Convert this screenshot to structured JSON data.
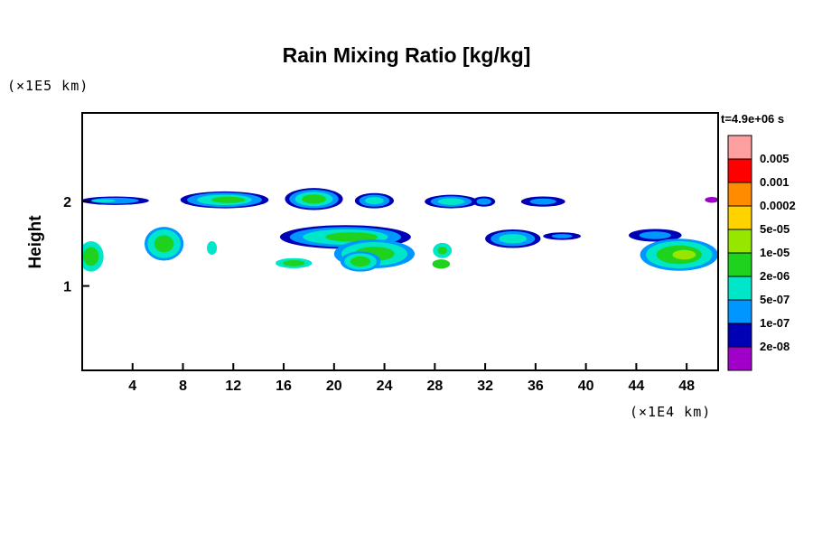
{
  "chart_data": {
    "type": "heatmap",
    "subtype": "filled-contour",
    "title": "Rain Mixing Ratio [kg/kg]",
    "ylabel": "Height",
    "y_unit_label": "(×1E5 km)",
    "x_unit_label": "(×1E4 km)",
    "time_label": "t=4.9e+06 s",
    "xlim": [
      0,
      50.5
    ],
    "ylim": [
      0,
      3.05
    ],
    "x_ticks": [
      4,
      8,
      12,
      16,
      20,
      24,
      28,
      32,
      36,
      40,
      44,
      48
    ],
    "y_ticks": [
      1,
      2
    ],
    "grid": false,
    "legend_position": "right",
    "colorbar": {
      "labels": [
        "0.005",
        "0.001",
        "0.0002",
        "5e-05",
        "1e-05",
        "2e-06",
        "5e-07",
        "1e-07",
        "2e-08"
      ],
      "colors": [
        "#ffa0a0",
        "#ff0000",
        "#ff8c00",
        "#ffd200",
        "#96e600",
        "#1ed21e",
        "#00e6c8",
        "#0096ff",
        "#0000b4",
        "#a000c8"
      ]
    },
    "blobs": [
      {
        "cx": 2.6,
        "cy": 2.01,
        "rx": 2.7,
        "ry": 0.05,
        "layers": [
          {
            "color": "#0000b4",
            "f": 1
          },
          {
            "color": "#0096ff",
            "f": 0.7
          },
          {
            "color": "#00e6c8",
            "f": 0.35,
            "dx": -0.9
          }
        ]
      },
      {
        "cx": 11.3,
        "cy": 2.02,
        "rx": 3.5,
        "ry": 0.1,
        "layers": [
          {
            "color": "#0000b4",
            "f": 1
          },
          {
            "color": "#0096ff",
            "f": 0.85
          },
          {
            "color": "#00e6c8",
            "f": 0.62
          },
          {
            "color": "#1ed21e",
            "f": 0.38,
            "dx": 0.3
          }
        ]
      },
      {
        "cx": 18.4,
        "cy": 2.03,
        "rx": 2.3,
        "ry": 0.13,
        "layers": [
          {
            "color": "#0000b4",
            "f": 1
          },
          {
            "color": "#0096ff",
            "f": 0.85
          },
          {
            "color": "#00e6c8",
            "f": 0.65
          },
          {
            "color": "#1ed21e",
            "f": 0.42
          }
        ]
      },
      {
        "cx": 23.2,
        "cy": 2.01,
        "rx": 1.55,
        "ry": 0.09,
        "layers": [
          {
            "color": "#0000b4",
            "f": 1
          },
          {
            "color": "#0096ff",
            "f": 0.78
          },
          {
            "color": "#00e6c8",
            "f": 0.48
          }
        ]
      },
      {
        "cx": 29.3,
        "cy": 2.0,
        "rx": 2.1,
        "ry": 0.08,
        "layers": [
          {
            "color": "#0000b4",
            "f": 1
          },
          {
            "color": "#0096ff",
            "f": 0.78
          },
          {
            "color": "#00e6c8",
            "f": 0.5
          }
        ]
      },
      {
        "cx": 31.9,
        "cy": 2.0,
        "rx": 0.9,
        "ry": 0.06,
        "layers": [
          {
            "color": "#0000b4",
            "f": 1
          },
          {
            "color": "#0096ff",
            "f": 0.65
          }
        ]
      },
      {
        "cx": 36.6,
        "cy": 2.0,
        "rx": 1.75,
        "ry": 0.06,
        "layers": [
          {
            "color": "#0000b4",
            "f": 1
          },
          {
            "color": "#0096ff",
            "f": 0.6
          }
        ]
      },
      {
        "cx": 50.0,
        "cy": 2.02,
        "rx": 0.55,
        "ry": 0.035,
        "layers": [
          {
            "color": "#a000c8",
            "f": 1
          }
        ]
      },
      {
        "cx": 6.5,
        "cy": 1.5,
        "rx": 1.55,
        "ry": 0.2,
        "layers": [
          {
            "color": "#0096ff",
            "f": 1
          },
          {
            "color": "#00e6c8",
            "f": 0.85
          },
          {
            "color": "#1ed21e",
            "f": 0.5
          }
        ]
      },
      {
        "cx": 10.3,
        "cy": 1.45,
        "rx": 0.4,
        "ry": 0.08,
        "layers": [
          {
            "color": "#00e6c8",
            "f": 1
          }
        ]
      },
      {
        "cx": 20.9,
        "cy": 1.58,
        "rx": 5.2,
        "ry": 0.14,
        "layers": [
          {
            "color": "#0000b4",
            "f": 1
          },
          {
            "color": "#0096ff",
            "f": 0.85
          },
          {
            "color": "#00e6c8",
            "f": 0.65
          },
          {
            "color": "#1ed21e",
            "f": 0.4,
            "dx": 0.5
          }
        ]
      },
      {
        "cx": 23.2,
        "cy": 1.38,
        "rx": 3.2,
        "ry": 0.17,
        "layers": [
          {
            "color": "#0096ff",
            "f": 1
          },
          {
            "color": "#00e6c8",
            "f": 0.82
          },
          {
            "color": "#1ed21e",
            "f": 0.5
          }
        ]
      },
      {
        "cx": 28.6,
        "cy": 1.42,
        "rx": 0.75,
        "ry": 0.09,
        "layers": [
          {
            "color": "#00e6c8",
            "f": 1
          },
          {
            "color": "#1ed21e",
            "f": 0.5
          }
        ]
      },
      {
        "cx": 34.2,
        "cy": 1.56,
        "rx": 2.2,
        "ry": 0.11,
        "layers": [
          {
            "color": "#0000b4",
            "f": 1
          },
          {
            "color": "#0096ff",
            "f": 0.8
          },
          {
            "color": "#00e6c8",
            "f": 0.5
          }
        ]
      },
      {
        "cx": 38.1,
        "cy": 1.59,
        "rx": 1.5,
        "ry": 0.045,
        "layers": [
          {
            "color": "#0000b4",
            "f": 1
          },
          {
            "color": "#0096ff",
            "f": 0.55
          }
        ]
      },
      {
        "cx": 45.5,
        "cy": 1.6,
        "rx": 2.1,
        "ry": 0.075,
        "layers": [
          {
            "color": "#0000b4",
            "f": 1
          },
          {
            "color": "#0096ff",
            "f": 0.6
          }
        ]
      },
      {
        "cx": 47.4,
        "cy": 1.37,
        "rx": 3.1,
        "ry": 0.19,
        "layers": [
          {
            "color": "#0096ff",
            "f": 1
          },
          {
            "color": "#00e6c8",
            "f": 0.85
          },
          {
            "color": "#1ed21e",
            "f": 0.58
          },
          {
            "color": "#96e600",
            "f": 0.3,
            "dx": 0.4
          }
        ]
      },
      {
        "cx": 0.7,
        "cy": 1.35,
        "rx": 1.0,
        "ry": 0.18,
        "layers": [
          {
            "color": "#00e6c8",
            "f": 1
          },
          {
            "color": "#1ed21e",
            "f": 0.62
          }
        ]
      },
      {
        "cx": 16.8,
        "cy": 1.27,
        "rx": 1.45,
        "ry": 0.06,
        "layers": [
          {
            "color": "#00e6c8",
            "f": 1
          },
          {
            "color": "#1ed21e",
            "f": 0.6
          }
        ]
      },
      {
        "cx": 22.1,
        "cy": 1.29,
        "rx": 1.6,
        "ry": 0.12,
        "layers": [
          {
            "color": "#0096ff",
            "f": 1
          },
          {
            "color": "#00e6c8",
            "f": 0.8
          },
          {
            "color": "#1ed21e",
            "f": 0.5
          }
        ]
      },
      {
        "cx": 28.5,
        "cy": 1.26,
        "rx": 0.7,
        "ry": 0.055,
        "layers": [
          {
            "color": "#1ed21e",
            "f": 1
          }
        ]
      }
    ]
  }
}
